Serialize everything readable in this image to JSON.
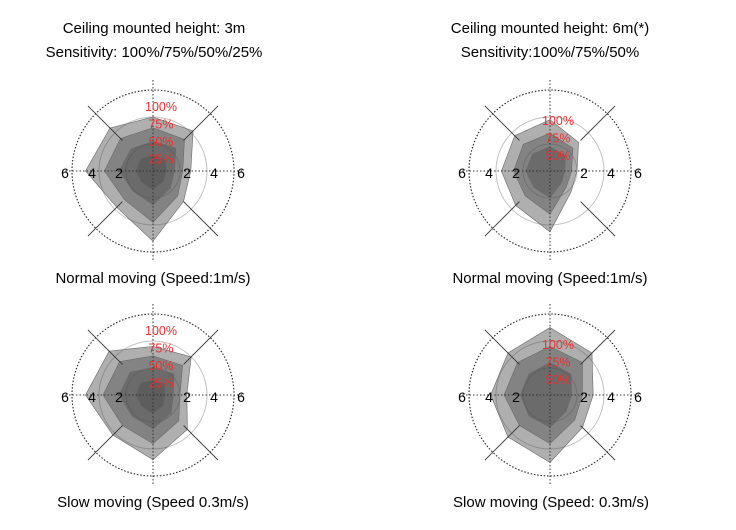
{
  "columns": [
    {
      "heading_line1": "Ceiling mounted height: 3m",
      "heading_line2": "Sensitivity: 100%/75%/50%/25%"
    },
    {
      "heading_line1": "Ceiling mounted height: 6m(*)",
      "heading_line2": "Sensitivity:100%/75%/50%"
    }
  ],
  "panels": [
    {
      "caption": "Normal moving (Speed:1m/s)",
      "axis_ticks": [
        "6",
        "4",
        "2",
        "2",
        "4",
        "6"
      ],
      "sensitivity_labels": [
        "100%",
        "75%",
        "50%",
        "25%"
      ],
      "levels": [
        {
          "sensitivity": "100%",
          "radii": [
            4.0,
            4.2,
            2.8,
            3.2,
            5.2,
            3.8,
            5.0,
            4.5
          ]
        },
        {
          "sensitivity": "75%",
          "radii": [
            3.2,
            3.3,
            2.2,
            2.6,
            3.8,
            3.0,
            3.6,
            3.4
          ]
        },
        {
          "sensitivity": "50%",
          "radii": [
            2.2,
            2.4,
            1.6,
            1.8,
            2.5,
            2.1,
            2.5,
            2.3
          ]
        },
        {
          "sensitivity": "25%",
          "radii": [
            1.2,
            1.3,
            1.0,
            1.1,
            1.4,
            1.2,
            1.3,
            1.3
          ]
        }
      ]
    },
    {
      "caption": "Normal moving (Speed:1m/s)",
      "axis_ticks": [
        "6",
        "4",
        "2",
        "2",
        "4",
        "6"
      ],
      "sensitivity_labels": [
        "100%",
        "75%",
        "50%"
      ],
      "levels": [
        {
          "sensitivity": "100%",
          "radii": [
            3.8,
            3.0,
            2.0,
            2.2,
            4.5,
            3.6,
            3.6,
            3.7
          ]
        },
        {
          "sensitivity": "75%",
          "radii": [
            2.8,
            2.4,
            1.6,
            1.7,
            3.2,
            2.6,
            2.7,
            2.8
          ]
        },
        {
          "sensitivity": "50%",
          "radii": [
            1.8,
            1.6,
            1.1,
            1.2,
            2.0,
            1.7,
            1.8,
            1.8
          ]
        }
      ]
    },
    {
      "caption": "Slow moving (Speed 0.3m/s)",
      "axis_ticks": [
        "6",
        "4",
        "2",
        "2",
        "4",
        "6"
      ],
      "sensitivity_labels": [
        "100%",
        "75%",
        "50%",
        "25%"
      ],
      "levels": [
        {
          "sensitivity": "100%",
          "radii": [
            3.6,
            4.0,
            2.5,
            3.6,
            4.8,
            4.2,
            5.0,
            4.6
          ]
        },
        {
          "sensitivity": "75%",
          "radii": [
            2.9,
            3.1,
            2.0,
            2.7,
            3.6,
            3.2,
            3.7,
            3.5
          ]
        },
        {
          "sensitivity": "50%",
          "radii": [
            2.0,
            2.2,
            1.5,
            1.9,
            2.5,
            2.2,
            2.5,
            2.4
          ]
        },
        {
          "sensitivity": "25%",
          "radii": [
            1.1,
            1.2,
            0.9,
            1.1,
            1.4,
            1.2,
            1.3,
            1.3
          ]
        }
      ]
    },
    {
      "caption": "Slow moving (Speed: 0.3m/s)",
      "axis_ticks": [
        "6",
        "4",
        "2",
        "2",
        "4",
        "6"
      ],
      "sensitivity_labels": [
        "100%",
        "75%",
        "50%"
      ],
      "levels": [
        {
          "sensitivity": "100%",
          "radii": [
            5.0,
            4.4,
            3.2,
            3.4,
            5.0,
            4.4,
            4.4,
            4.4
          ]
        },
        {
          "sensitivity": "75%",
          "radii": [
            3.6,
            3.4,
            2.4,
            2.6,
            3.6,
            3.2,
            3.4,
            3.4
          ]
        },
        {
          "sensitivity": "50%",
          "radii": [
            2.4,
            2.2,
            1.6,
            1.7,
            2.4,
            2.2,
            2.2,
            2.2
          ]
        }
      ]
    }
  ],
  "colors": {
    "level_fill": "#4d4d4d",
    "ring_label": "#e8302e",
    "outer_ring": "#222222",
    "inner_ring": "#c0c0c0",
    "axis": "#333333"
  }
}
